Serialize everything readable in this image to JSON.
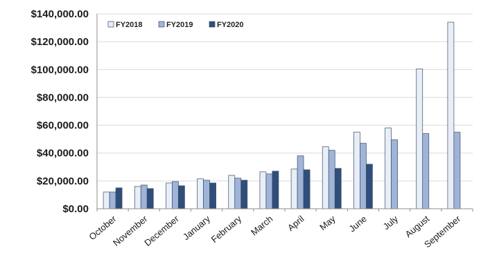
{
  "chart_data": {
    "type": "bar",
    "title": "",
    "xlabel": "",
    "ylabel": "",
    "ylim": [
      0,
      140000
    ],
    "yticks": [
      0,
      20000,
      40000,
      60000,
      80000,
      100000,
      120000,
      140000
    ],
    "ytick_labels": [
      "$0.00",
      "$20,000.00",
      "$40,000.00",
      "$60,000.00",
      "$80,000.00",
      "$100,000.00",
      "$120,000.00",
      "$140,000.00"
    ],
    "categories": [
      "October",
      "November",
      "December",
      "January",
      "February",
      "March",
      "April",
      "May",
      "June",
      "July",
      "August",
      "September"
    ],
    "series": [
      {
        "name": "FY2018",
        "color": "#e8eef8",
        "values": [
          12000,
          16000,
          18500,
          21500,
          24000,
          26500,
          28500,
          44500,
          55000,
          58000,
          100500,
          134000
        ]
      },
      {
        "name": "FY2019",
        "color": "#9fb4d8",
        "values": [
          12000,
          17000,
          19500,
          20500,
          22000,
          25000,
          38000,
          42000,
          47000,
          49500,
          54000,
          55000
        ]
      },
      {
        "name": "FY2020",
        "color": "#2f4f7a",
        "values": [
          15000,
          14500,
          16500,
          18500,
          20500,
          27000,
          28000,
          29000,
          32000,
          null,
          null,
          null
        ]
      }
    ],
    "grid": true,
    "legend_position": "top-left"
  }
}
